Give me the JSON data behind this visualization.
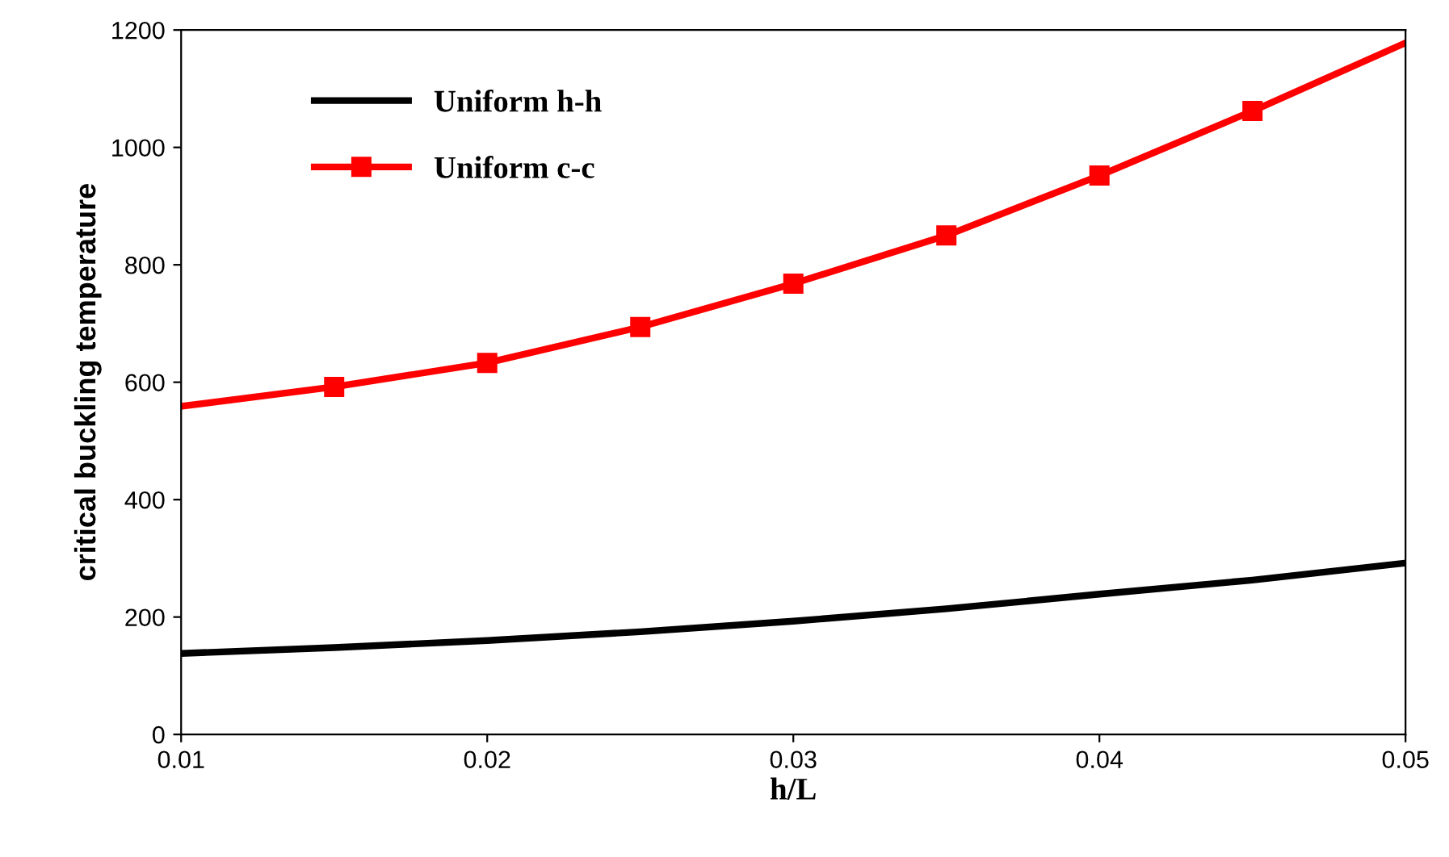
{
  "chart_data": {
    "type": "line",
    "xlabel": "h/L",
    "ylabel": "critical buckling temperature",
    "x": [
      0.01,
      0.015,
      0.02,
      0.025,
      0.03,
      0.035,
      0.04,
      0.045,
      0.05
    ],
    "series": [
      {
        "name": "Uniform h-h",
        "color": "#000000",
        "marker": "none",
        "values": [
          138,
          148,
          160,
          175,
          193,
          214,
          239,
          263,
          292
        ]
      },
      {
        "name": "Uniform c-c",
        "color": "#ff0000",
        "marker": "square",
        "values": [
          559,
          592,
          633,
          694,
          768,
          850,
          952,
          1062,
          1178
        ]
      }
    ],
    "xlim": [
      0.01,
      0.05
    ],
    "xticks": [
      {
        "value": 0.01,
        "label": "0.01"
      },
      {
        "value": 0.02,
        "label": "0.02"
      },
      {
        "value": 0.03,
        "label": "0.03"
      },
      {
        "value": 0.04,
        "label": "0.04"
      },
      {
        "value": 0.05,
        "label": "0.05"
      }
    ],
    "ylim": [
      0,
      1200
    ],
    "yticks": [
      0,
      200,
      400,
      600,
      800,
      1000,
      1200
    ],
    "grid": false,
    "legend": "top left",
    "line_style": "solid"
  }
}
